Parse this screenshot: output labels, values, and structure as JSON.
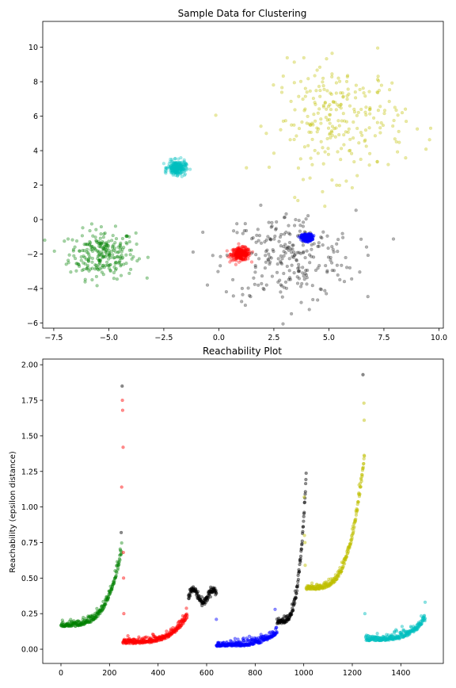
{
  "chart_data": [
    {
      "type": "scatter",
      "title": "Sample Data for Clustering",
      "xlabel": "",
      "ylabel": "",
      "xlim": [
        -8.0,
        10.2
      ],
      "ylim": [
        -6.3,
        11.5
      ],
      "xticks": [
        -7.5,
        -5.0,
        -2.5,
        0.0,
        2.5,
        5.0,
        7.5,
        10.0
      ],
      "xtick_labels": [
        "−7.5",
        "−5.0",
        "−2.5",
        "0.0",
        "2.5",
        "5.0",
        "7.5",
        "10.0"
      ],
      "yticks": [
        -6,
        -4,
        -2,
        0,
        2,
        4,
        6,
        8,
        10
      ],
      "ytick_labels": [
        "−6",
        "−4",
        "−2",
        "0",
        "2",
        "4",
        "6",
        "8",
        "10"
      ],
      "grid": false,
      "series": [
        {
          "color": "#008000",
          "alpha": 0.35,
          "center": [
            -5.3,
            -2.0
          ],
          "spread": [
            0.75,
            0.7
          ],
          "n": 250
        },
        {
          "color": "#ff0000",
          "alpha": 0.35,
          "center": [
            1.0,
            -2.0
          ],
          "spread": [
            0.22,
            0.18
          ],
          "n": 250
        },
        {
          "color": "#000000",
          "alpha": 0.3,
          "center": [
            3.2,
            -2.2
          ],
          "spread": [
            1.5,
            1.35
          ],
          "n": 250
        },
        {
          "color": "#0000ff",
          "alpha": 0.45,
          "center": [
            4.0,
            -1.05
          ],
          "spread": [
            0.12,
            0.1
          ],
          "n": 250
        },
        {
          "color": "#bfbf00",
          "alpha": 0.35,
          "center": [
            5.5,
            5.8
          ],
          "spread": [
            1.5,
            1.6
          ],
          "n": 250
        },
        {
          "color": "#00bfbf",
          "alpha": 0.35,
          "center": [
            -1.9,
            3.0
          ],
          "spread": [
            0.2,
            0.2
          ],
          "n": 250
        }
      ]
    },
    {
      "type": "scatter",
      "title": "Reachability Plot",
      "xlabel": "",
      "ylabel": "Reachability (epsilon distance)",
      "xlim": [
        -75,
        1575
      ],
      "ylim": [
        -0.1,
        2.04
      ],
      "xticks": [
        0,
        200,
        400,
        600,
        800,
        1000,
        1200,
        1400
      ],
      "xtick_labels": [
        "0",
        "200",
        "400",
        "600",
        "800",
        "1000",
        "1200",
        "1400"
      ],
      "yticks": [
        0.0,
        0.25,
        0.5,
        0.75,
        1.0,
        1.25,
        1.5,
        1.75,
        2.0
      ],
      "ytick_labels": [
        "0.00",
        "0.25",
        "0.50",
        "0.75",
        "1.00",
        "1.25",
        "1.50",
        "1.75",
        "2.00"
      ],
      "grid": false,
      "segments": [
        {
          "color": "#008000",
          "alpha": 0.4,
          "x_range": [
            0,
            250
          ],
          "shape": "rise",
          "y_start": 0.16,
          "y_end": 0.68
        },
        {
          "color": "#ff0000",
          "alpha": 0.45,
          "x_range": [
            255,
            520
          ],
          "shape": "rise",
          "y_start": 0.04,
          "y_end": 0.22
        },
        {
          "color": "#000000",
          "alpha": 0.45,
          "x_range": [
            525,
            640
          ],
          "shape": "flat",
          "y_start": 0.33,
          "y_end": 0.42
        },
        {
          "color": "#0000ff",
          "alpha": 0.45,
          "x_range": [
            640,
            890
          ],
          "shape": "rise",
          "y_start": 0.02,
          "y_end": 0.11
        },
        {
          "color": "#000000",
          "alpha": 0.45,
          "x_range": [
            890,
            1010
          ],
          "shape": "rise",
          "y_start": 0.18,
          "y_end": 1.2
        },
        {
          "color": "#bfbf00",
          "alpha": 0.45,
          "x_range": [
            1010,
            1250
          ],
          "shape": "rise",
          "y_start": 0.42,
          "y_end": 1.35
        },
        {
          "color": "#00bfbf",
          "alpha": 0.45,
          "x_range": [
            1255,
            1500
          ],
          "shape": "rise",
          "y_start": 0.06,
          "y_end": 0.2
        }
      ],
      "spikes": [
        {
          "x": 248,
          "y": 0.82,
          "color": "#000000"
        },
        {
          "x": 250,
          "y": 1.14,
          "color": "#ff0000"
        },
        {
          "x": 252,
          "y": 1.85,
          "color": "#000000"
        },
        {
          "x": 253,
          "y": 1.75,
          "color": "#ff0000"
        },
        {
          "x": 254,
          "y": 1.68,
          "color": "#ff0000"
        },
        {
          "x": 256,
          "y": 1.42,
          "color": "#ff0000"
        },
        {
          "x": 257,
          "y": 0.68,
          "color": "#ff0000"
        },
        {
          "x": 258,
          "y": 0.5,
          "color": "#ff0000"
        },
        {
          "x": 259,
          "y": 0.25,
          "color": "#ff0000"
        },
        {
          "x": 640,
          "y": 0.21,
          "color": "#0000ff"
        },
        {
          "x": 882,
          "y": 0.28,
          "color": "#0000ff"
        },
        {
          "x": 1002,
          "y": 1.07,
          "color": "#bfbf00"
        },
        {
          "x": 1003,
          "y": 0.8,
          "color": "#bfbf00"
        },
        {
          "x": 1005,
          "y": 0.75,
          "color": "#bfbf00"
        },
        {
          "x": 1006,
          "y": 0.59,
          "color": "#bfbf00"
        },
        {
          "x": 1244,
          "y": 1.93,
          "color": "#000000"
        },
        {
          "x": 1248,
          "y": 1.73,
          "color": "#bfbf00"
        },
        {
          "x": 1249,
          "y": 1.61,
          "color": "#bfbf00"
        },
        {
          "x": 1252,
          "y": 0.25,
          "color": "#00bfbf"
        },
        {
          "x": 1500,
          "y": 0.33,
          "color": "#00bfbf"
        }
      ]
    }
  ]
}
